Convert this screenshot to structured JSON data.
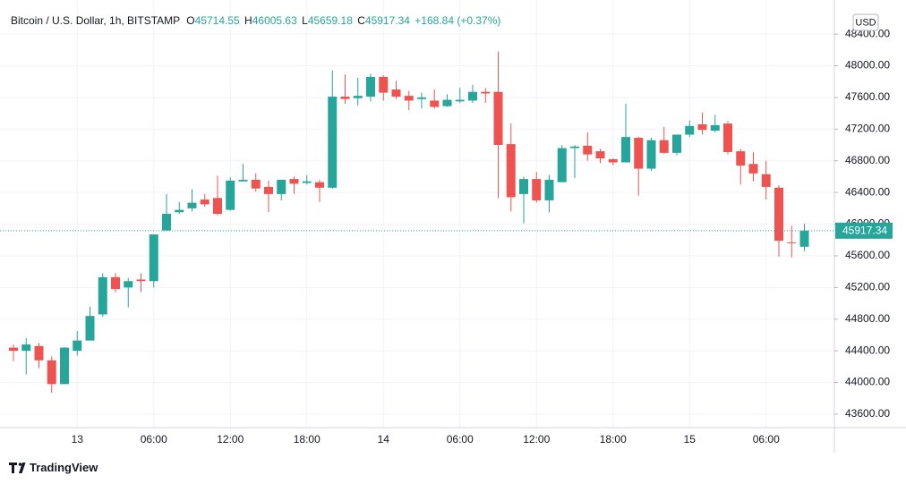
{
  "chart_data": {
    "type": "candlestick",
    "title": "Bitcoin / U.S. Dollar, 1h, BITSTAMP",
    "ohlc_keys": [
      "O",
      "H",
      "L",
      "C"
    ],
    "change_label": "+168.84 (+0.37%)",
    "currency": "USD",
    "brand": "TradingView",
    "up_color": "#26a69a",
    "down_color": "#ef5350",
    "grid": true,
    "categories": [
      null,
      null,
      null,
      null,
      null,
      "13",
      null,
      null,
      null,
      null,
      null,
      "06:00",
      null,
      null,
      null,
      null,
      null,
      "12:00",
      null,
      null,
      null,
      null,
      null,
      "18:00",
      null,
      null,
      null,
      null,
      null,
      "14",
      null,
      null,
      null,
      null,
      null,
      "06:00",
      null,
      null,
      null,
      null,
      null,
      "12:00",
      null,
      null,
      null,
      null,
      null,
      "18:00",
      null,
      null,
      null,
      null,
      null,
      "15",
      null,
      null,
      null,
      null,
      null,
      "06:00",
      null,
      null,
      null
    ],
    "open": [
      44440,
      44400,
      44460,
      44280,
      43980,
      44400,
      44530,
      44860,
      45330,
      45200,
      45300,
      45280,
      45920,
      46150,
      46200,
      46310,
      46330,
      46180,
      46540,
      46560,
      46470,
      46380,
      46570,
      46520,
      46530,
      46460,
      47610,
      47590,
      47610,
      47860,
      47700,
      47620,
      47580,
      47560,
      47490,
      47550,
      47560,
      47670,
      47670,
      47010,
      46380,
      46570,
      46300,
      46530,
      46960,
      46990,
      46920,
      46820,
      46780,
      47090,
      46700,
      47060,
      46900,
      47130,
      47260,
      47180,
      47270,
      46920,
      46760,
      46630,
      46460,
      45770,
      45714.55
    ],
    "high": [
      44480,
      44560,
      44500,
      44330,
      44450,
      44650,
      44960,
      45380,
      45380,
      45320,
      45380,
      45870,
      46380,
      46280,
      46440,
      46380,
      46610,
      46590,
      46760,
      46640,
      46550,
      46560,
      46600,
      46620,
      46560,
      47940,
      47890,
      47850,
      47900,
      47880,
      47810,
      47680,
      47660,
      47700,
      47640,
      47720,
      47760,
      47720,
      48180,
      47270,
      46600,
      46660,
      46620,
      47000,
      47000,
      47160,
      46950,
      46830,
      47520,
      47100,
      47090,
      47230,
      47130,
      47310,
      47410,
      47380,
      47300,
      46950,
      46910,
      46800,
      46490,
      45980,
      46005.63
    ],
    "low": [
      44270,
      44100,
      44180,
      43870,
      43980,
      44340,
      44530,
      44830,
      45140,
      44950,
      45140,
      45200,
      45920,
      46130,
      46160,
      46220,
      46110,
      46170,
      46540,
      46410,
      46150,
      46300,
      46380,
      46500,
      46280,
      46450,
      47520,
      47500,
      47550,
      47560,
      47580,
      47440,
      47460,
      47460,
      47480,
      47530,
      47530,
      47530,
      46330,
      46160,
      46010,
      46270,
      46150,
      46530,
      46580,
      46800,
      46770,
      46740,
      46780,
      46360,
      46670,
      46890,
      46870,
      47100,
      47130,
      47160,
      46880,
      46500,
      46540,
      46310,
      45590,
      45580,
      45659.18
    ],
    "close": [
      44400,
      44480,
      44280,
      43980,
      44440,
      44530,
      44840,
      45330,
      45180,
      45280,
      45280,
      45870,
      46130,
      46180,
      46270,
      46250,
      46130,
      46550,
      46560,
      46450,
      46380,
      46560,
      46510,
      46540,
      46460,
      47610,
      47580,
      47620,
      47860,
      47660,
      47610,
      47560,
      47600,
      47480,
      47570,
      47570,
      47670,
      47650,
      47000,
      46340,
      46570,
      46300,
      46560,
      46960,
      46980,
      46880,
      46830,
      46780,
      47100,
      46700,
      47060,
      46900,
      47130,
      47240,
      47190,
      47250,
      46910,
      46740,
      46640,
      46470,
      45790,
      45760,
      45917.34
    ],
    "ylim": [
      43430,
      48740
    ],
    "yticks": [
      {
        "value": 43600,
        "label": "43600.00"
      },
      {
        "value": 44000,
        "label": "44000.00"
      },
      {
        "value": 44400,
        "label": "44400.00"
      },
      {
        "value": 44800,
        "label": "44800.00"
      },
      {
        "value": 45200,
        "label": "45200.00"
      },
      {
        "value": 45600,
        "label": "45600.00"
      },
      {
        "value": 46000,
        "label": "46000.00"
      },
      {
        "value": 46400,
        "label": "46400.00"
      },
      {
        "value": 46800,
        "label": "46800.00"
      },
      {
        "value": 47200,
        "label": "47200.00"
      },
      {
        "value": 47600,
        "label": "47600.00"
      },
      {
        "value": 48000,
        "label": "48000.00"
      },
      {
        "value": 48400,
        "label": "48400.00"
      }
    ]
  }
}
